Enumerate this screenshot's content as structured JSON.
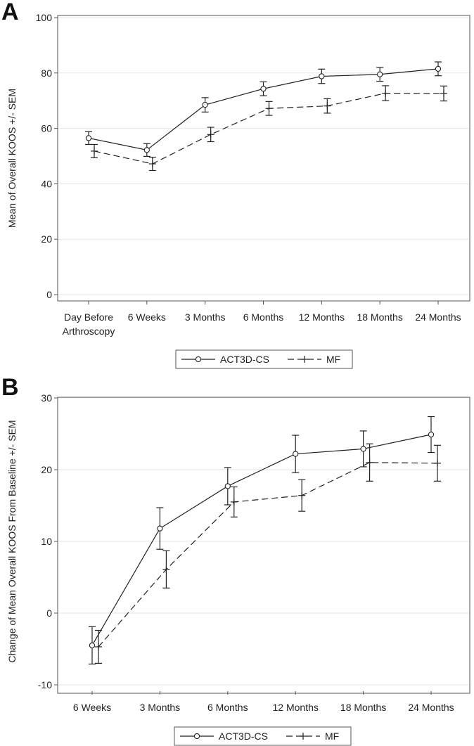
{
  "chart_data": [
    {
      "panel": "A",
      "type": "line",
      "title": "",
      "ylabel": "Mean of Overall KOOS +/- SEM",
      "xlabel": "",
      "ylim": [
        0,
        100
      ],
      "yticks": [
        0,
        20,
        40,
        60,
        80,
        100
      ],
      "grid": true,
      "categories": [
        [
          "Day Before",
          "Arthroscopy"
        ],
        [
          "6 Weeks"
        ],
        [
          "3 Months"
        ],
        [
          "6 Months"
        ],
        [
          "12 Months"
        ],
        [
          "18 Months"
        ],
        [
          "24 Months"
        ]
      ],
      "series": [
        {
          "name": "ACT3D-CS",
          "marker": "circle",
          "line": "solid",
          "values": [
            56.5,
            52.2,
            68.5,
            74.3,
            78.8,
            79.5,
            81.5
          ],
          "sem": [
            2.3,
            2.3,
            2.6,
            2.5,
            2.6,
            2.5,
            2.5
          ]
        },
        {
          "name": "MF",
          "marker": "plus",
          "line": "dashed",
          "values": [
            51.8,
            47.2,
            57.8,
            67.2,
            68.1,
            72.7,
            72.6
          ],
          "sem": [
            2.4,
            2.4,
            2.6,
            2.5,
            2.6,
            2.7,
            2.7
          ]
        }
      ],
      "legend": "bottom-center"
    },
    {
      "panel": "B",
      "type": "line",
      "title": "",
      "ylabel": "Change of Mean Overall KOOS From Baseline +/- SEM",
      "xlabel": "",
      "ylim": [
        -10,
        30
      ],
      "yticks": [
        -10,
        0,
        10,
        20,
        30
      ],
      "grid": true,
      "categories": [
        [
          "6 Weeks"
        ],
        [
          "3 Months"
        ],
        [
          "6 Months"
        ],
        [
          "12 Months"
        ],
        [
          "18 Months"
        ],
        [
          "24 Months"
        ]
      ],
      "series": [
        {
          "name": "ACT3D-CS",
          "marker": "circle",
          "line": "solid",
          "values": [
            -4.5,
            11.8,
            17.7,
            22.2,
            22.9,
            24.9
          ],
          "sem": [
            2.6,
            2.9,
            2.6,
            2.6,
            2.5,
            2.5
          ]
        },
        {
          "name": "MF",
          "marker": "plus",
          "line": "dashed",
          "values": [
            -4.7,
            6.1,
            15.5,
            16.4,
            21.0,
            20.9
          ],
          "sem": [
            2.3,
            2.6,
            2.1,
            2.2,
            2.6,
            2.5
          ]
        }
      ],
      "legend": "bottom-center"
    }
  ]
}
